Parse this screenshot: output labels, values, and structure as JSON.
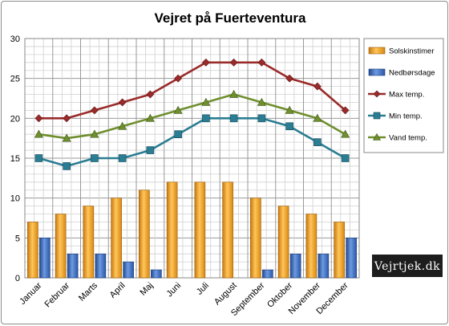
{
  "chart_data": {
    "type": "bar",
    "title": "Vejret på Fuerteventura",
    "categories": [
      "Januar",
      "Februar",
      "Marts",
      "April",
      "Maj",
      "Juni",
      "Juli",
      "August",
      "September",
      "Oktober",
      "November",
      "December"
    ],
    "ylim": [
      0,
      30
    ],
    "yticks": [
      "0",
      "5",
      "10",
      "15",
      "20",
      "25",
      "30"
    ],
    "grid": true,
    "legend_position": "right",
    "series": [
      {
        "name": "Solskinstimer",
        "kind": "bar",
        "color": "#f0a020",
        "values": [
          7,
          8,
          9,
          10,
          11,
          12,
          12,
          12,
          10,
          9,
          8,
          7
        ]
      },
      {
        "name": "Nedbørsdage",
        "kind": "bar",
        "color": "#3e6fc0",
        "values": [
          5,
          3,
          3,
          2,
          1,
          0,
          0,
          0,
          1,
          3,
          3,
          5
        ]
      },
      {
        "name": "Max temp.",
        "kind": "line",
        "marker": "diamond",
        "color": "#9b2a2a",
        "values": [
          20,
          20,
          21,
          22,
          23,
          25,
          27,
          27,
          27,
          25,
          24,
          21
        ]
      },
      {
        "name": "Min temp.",
        "kind": "line",
        "marker": "square",
        "color": "#2a7d92",
        "values": [
          15,
          14,
          15,
          15,
          16,
          18,
          20,
          20,
          20,
          19,
          17,
          15
        ]
      },
      {
        "name": "Vand temp.",
        "kind": "line",
        "marker": "triangle",
        "color": "#6f8f2e",
        "values": [
          18,
          17.5,
          18,
          19,
          20,
          21,
          22,
          23,
          22,
          21,
          20,
          18
        ]
      }
    ]
  },
  "watermark": "Vejrtjek.dk"
}
